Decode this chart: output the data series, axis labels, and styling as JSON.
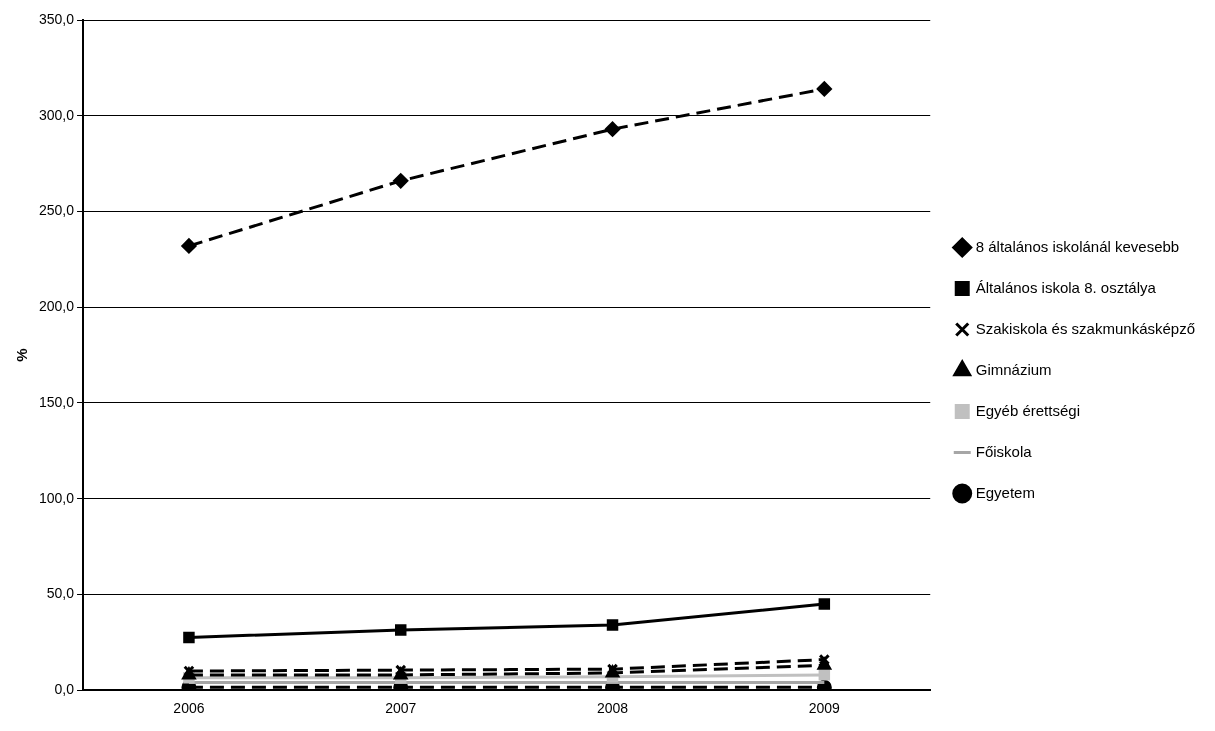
{
  "chart_data": {
    "type": "line",
    "ylabel": "%",
    "categories": [
      "2006",
      "2007",
      "2008",
      "2009"
    ],
    "ylim": [
      0,
      350
    ],
    "yticks": [
      {
        "value": 0,
        "label": "0,0"
      },
      {
        "value": 50,
        "label": "50,0"
      },
      {
        "value": 100,
        "label": "100,0"
      },
      {
        "value": 150,
        "label": "150,0"
      },
      {
        "value": 200,
        "label": "200,0"
      },
      {
        "value": 250,
        "label": "250,0"
      },
      {
        "value": 300,
        "label": "300,0"
      },
      {
        "value": 350,
        "label": "350,0"
      }
    ],
    "grid": "y",
    "legend": "right",
    "series": [
      {
        "name": "8 általános iskolánál kevesebb",
        "color": "#000000",
        "marker": "diamond",
        "line_style": "dashed",
        "values": [
          232,
          266,
          293,
          314
        ]
      },
      {
        "name": "Általános iskola 8. osztálya",
        "color": "#000000",
        "marker": "square",
        "line_style": "solid",
        "values": [
          27.5,
          31.5,
          34,
          45
        ]
      },
      {
        "name": "Szakiskola és szakmunkásképző",
        "color": "#000000",
        "marker": "cross",
        "line_style": "dashed",
        "values": [
          10,
          10.5,
          11,
          16
        ]
      },
      {
        "name": "Gimnázium",
        "color": "#000000",
        "marker": "triangle",
        "line_style": "dashed",
        "values": [
          8,
          8,
          9,
          13
        ]
      },
      {
        "name": "Egyéb érettségi",
        "color": "#c0c0c0",
        "marker": "square",
        "line_style": "solid",
        "values": [
          6.5,
          6.5,
          7,
          8
        ]
      },
      {
        "name": "Főiskola",
        "color": "#a6a6a6",
        "marker": "none",
        "line_style": "solid",
        "values": [
          4,
          4,
          4,
          4
        ]
      },
      {
        "name": "Egyetem",
        "color": "#000000",
        "marker": "circle",
        "line_style": "dashed",
        "values": [
          1.5,
          1.5,
          1.5,
          1.5
        ]
      }
    ]
  }
}
